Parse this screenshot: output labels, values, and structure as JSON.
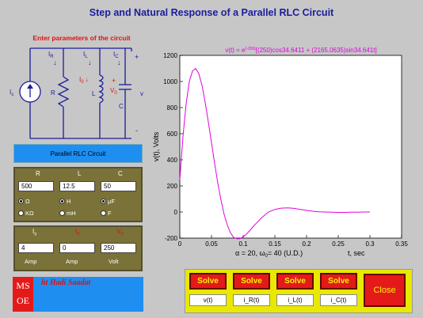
{
  "window": {
    "title": "Step and Natural Response of a Parallel RLC Circuit"
  },
  "params_title": "Enter parameters of the circuit",
  "circuit": {
    "is": "I",
    "is_sub": "s",
    "ir": "I",
    "ir_sub": "R",
    "il": "I",
    "il_sub": "L",
    "ic": "I",
    "ic_sub": "C",
    "i0": "I",
    "i0_sub": "0",
    "v0": "V",
    "v0_sub": "0",
    "r": "R",
    "l": "L",
    "c": "C",
    "v": "v",
    "plus": "+",
    "minus": "-"
  },
  "circuit_button": "Parallel RLC Circuit",
  "rlc_panel": {
    "r_label": "R",
    "l_label": "L",
    "c_label": "C",
    "r_value": "500",
    "l_value": "12.5",
    "c_value": "50",
    "r_units": [
      "Ω",
      "KΩ"
    ],
    "l_units": [
      "H",
      "mH"
    ],
    "c_units": [
      "μF",
      "F"
    ]
  },
  "init_panel": {
    "is_label": "I",
    "is_sub": "s",
    "i0_label": "I",
    "i0_sub": "0",
    "v0_label": "V",
    "v0_sub": "0",
    "is_value": "4",
    "i0_value": "0",
    "v0_value": "250",
    "units": [
      "Amp",
      "Amp",
      "Volt"
    ]
  },
  "credits": {
    "logo_line1": "MS",
    "logo_line2": "OE",
    "author": "ht   Hadi Saadat"
  },
  "solve_buttons": [
    {
      "label": "Solve",
      "output": "v(t)"
    },
    {
      "label": "Solve",
      "output": "i_R(t)"
    },
    {
      "label": "Solve",
      "output": "i_L(t)"
    },
    {
      "label": "Solve",
      "output": "i_C(t)"
    }
  ],
  "close_button": "Close",
  "chart_data": {
    "type": "line",
    "title_prefix": "v(t) = e",
    "title_exp": "(-20t)",
    "title_rest": "[(250)cos34.6411 + (2165.0635)sin34.641t]",
    "ylabel": "v(t), Volts",
    "xlabel": "t, sec",
    "caption": "α = 20,  ω",
    "caption_sub": "0",
    "caption_rest": "= 40  (U.D.)",
    "xlim": [
      0,
      0.35
    ],
    "ylim": [
      -200,
      1200
    ],
    "xticks": [
      "0",
      "0.05",
      "0.1",
      "0.15",
      "0.2",
      "0.25",
      "0.3",
      "0.35"
    ],
    "yticks": [
      "-200",
      "0",
      "200",
      "400",
      "600",
      "800",
      "1000",
      "1200"
    ],
    "series": [
      {
        "color": "#e000e0",
        "x": [
          0,
          0.005,
          0.01,
          0.015,
          0.02,
          0.025,
          0.03,
          0.035,
          0.04,
          0.045,
          0.05,
          0.055,
          0.06,
          0.065,
          0.07,
          0.075,
          0.08,
          0.085,
          0.09,
          0.095,
          0.1,
          0.105,
          0.11,
          0.115,
          0.12,
          0.13,
          0.14,
          0.15,
          0.16,
          0.17,
          0.18,
          0.19,
          0.2,
          0.21,
          0.22,
          0.23,
          0.24,
          0.25,
          0.26,
          0.27,
          0.28,
          0.29,
          0.3
        ],
        "y": [
          250,
          580,
          830,
          1000,
          1080,
          1100,
          1060,
          970,
          840,
          690,
          530,
          370,
          220,
          90,
          -20,
          -100,
          -160,
          -195,
          -205,
          -205,
          -190,
          -170,
          -145,
          -115,
          -90,
          -40,
          0,
          20,
          30,
          32,
          28,
          20,
          12,
          6,
          2,
          0,
          -2,
          -3,
          -3,
          -2,
          -1,
          0,
          0
        ]
      }
    ]
  }
}
